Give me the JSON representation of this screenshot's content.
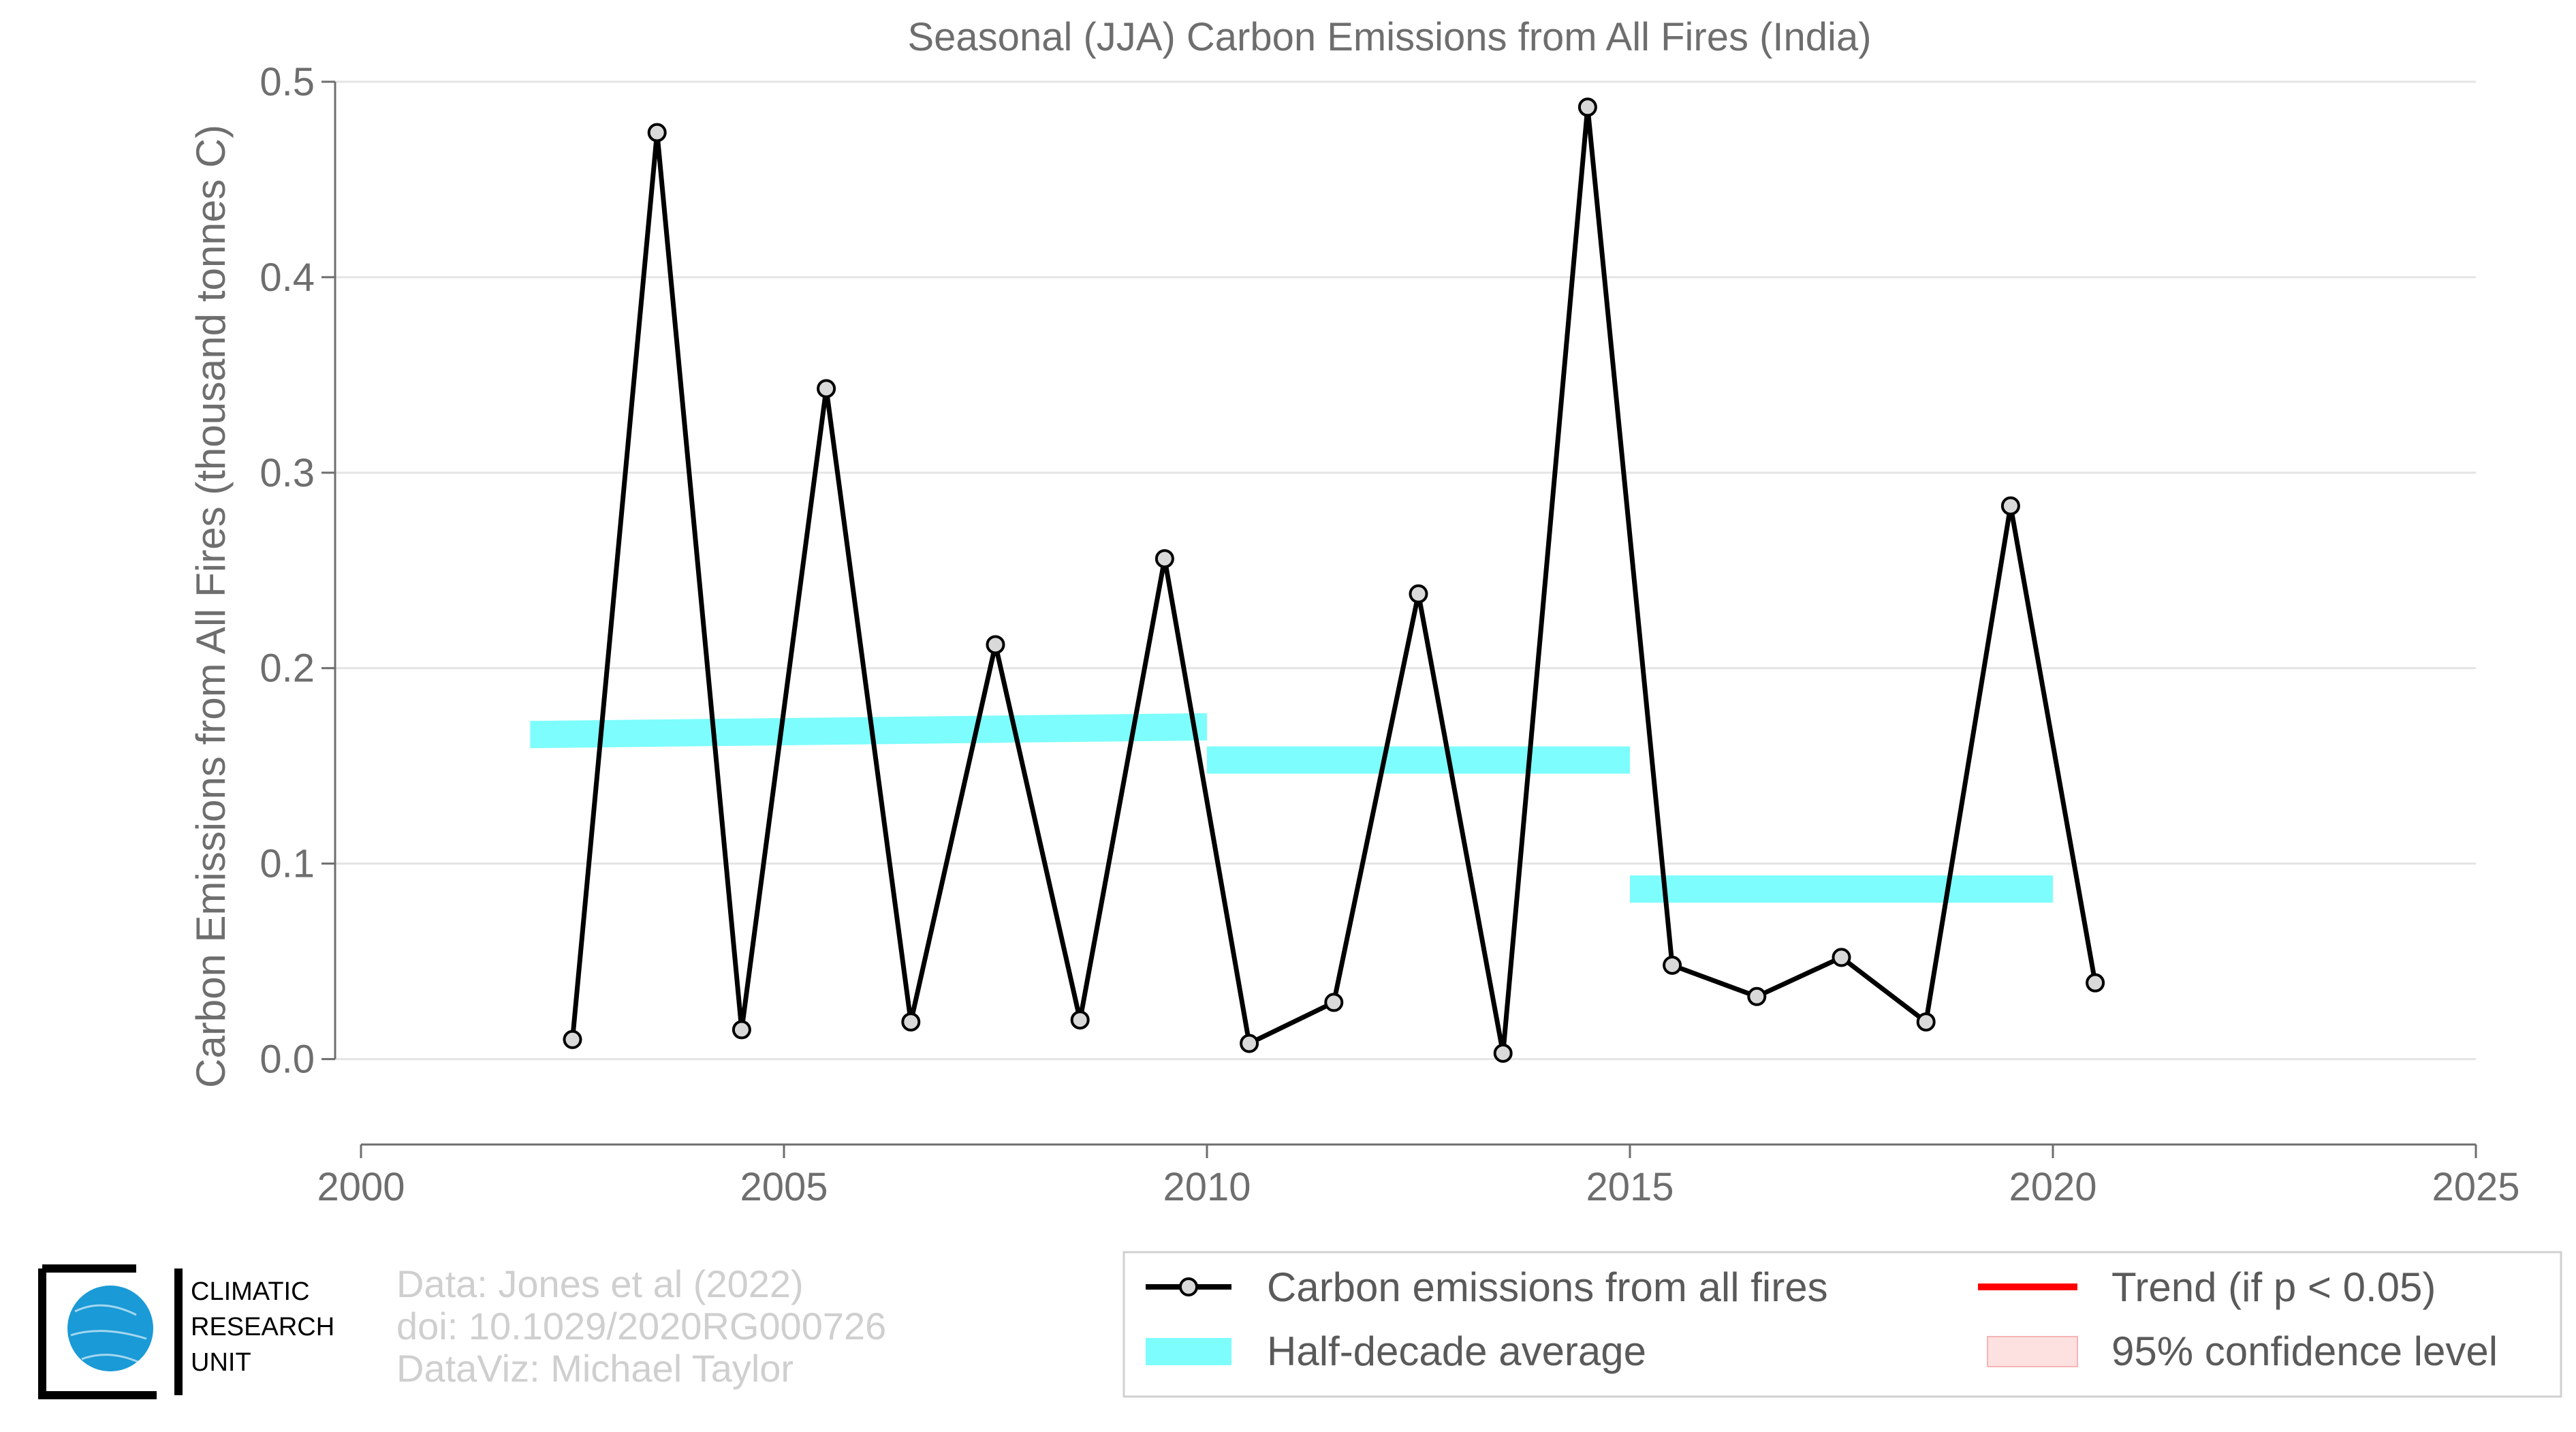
{
  "chart_data": {
    "type": "line",
    "title": "Seasonal (JJA) Carbon Emissions from All Fires (India)",
    "xlabel": "",
    "ylabel": "Carbon Emissions from All Fires (thousand tonnes C)",
    "xlim": [
      2000,
      2025
    ],
    "ylim": [
      -0.035,
      0.5
    ],
    "x_ticks": [
      2000,
      2005,
      2010,
      2015,
      2020,
      2025
    ],
    "y_ticks": [
      0.0,
      0.1,
      0.2,
      0.3,
      0.4,
      0.5
    ],
    "y_tick_labels": [
      "0.0",
      "0.1",
      "0.2",
      "0.3",
      "0.4",
      "0.5"
    ],
    "grid": "horizontal",
    "series": [
      {
        "name": "Carbon emissions from all fires",
        "color": "#000000",
        "marker_fill": "#d9d9d9",
        "x": [
          2002.5,
          2003.5,
          2004.5,
          2005.5,
          2006.5,
          2007.5,
          2008.5,
          2009.5,
          2010.5,
          2011.5,
          2012.5,
          2013.5,
          2014.5,
          2015.5,
          2016.5,
          2017.5,
          2018.5,
          2019.5,
          2020.5
        ],
        "values": [
          0.01,
          0.474,
          0.015,
          0.343,
          0.019,
          0.212,
          0.02,
          0.256,
          0.008,
          0.029,
          0.238,
          0.003,
          0.487,
          0.048,
          0.032,
          0.052,
          0.019,
          0.283,
          0.039
        ]
      }
    ],
    "half_decade_average": {
      "name": "Half-decade average",
      "color": "#7dfdfd",
      "segments": [
        {
          "x_start": 2002,
          "x_end": 2010,
          "y_start": 0.166,
          "y_end": 0.17
        },
        {
          "x_start": 2010,
          "x_end": 2015,
          "y_start": 0.153,
          "y_end": 0.153
        },
        {
          "x_start": 2015,
          "x_end": 2020,
          "y_start": 0.087,
          "y_end": 0.087
        }
      ]
    },
    "legend": {
      "placement": "bottom-right",
      "entries": [
        {
          "label": "Carbon emissions from all fires",
          "kind": "line-marker",
          "color": "#000000"
        },
        {
          "label": "Trend (if p < 0.05)",
          "kind": "line",
          "color": "#ff0000"
        },
        {
          "label": "Half-decade average",
          "kind": "patch",
          "color": "#7dfdfd"
        },
        {
          "label": "95% confidence level",
          "kind": "patch",
          "color": "#fde0e0"
        }
      ]
    }
  },
  "credits": {
    "line1": "Data: Jones et al (2022)",
    "line2": "doi: 10.1029/2020RG000726",
    "line3": "DataViz: Michael Taylor"
  },
  "logo": {
    "line1": "CLIMATIC",
    "line2": "RESEARCH",
    "line3": "UNIT",
    "globe_color": "#1a9ad6"
  }
}
